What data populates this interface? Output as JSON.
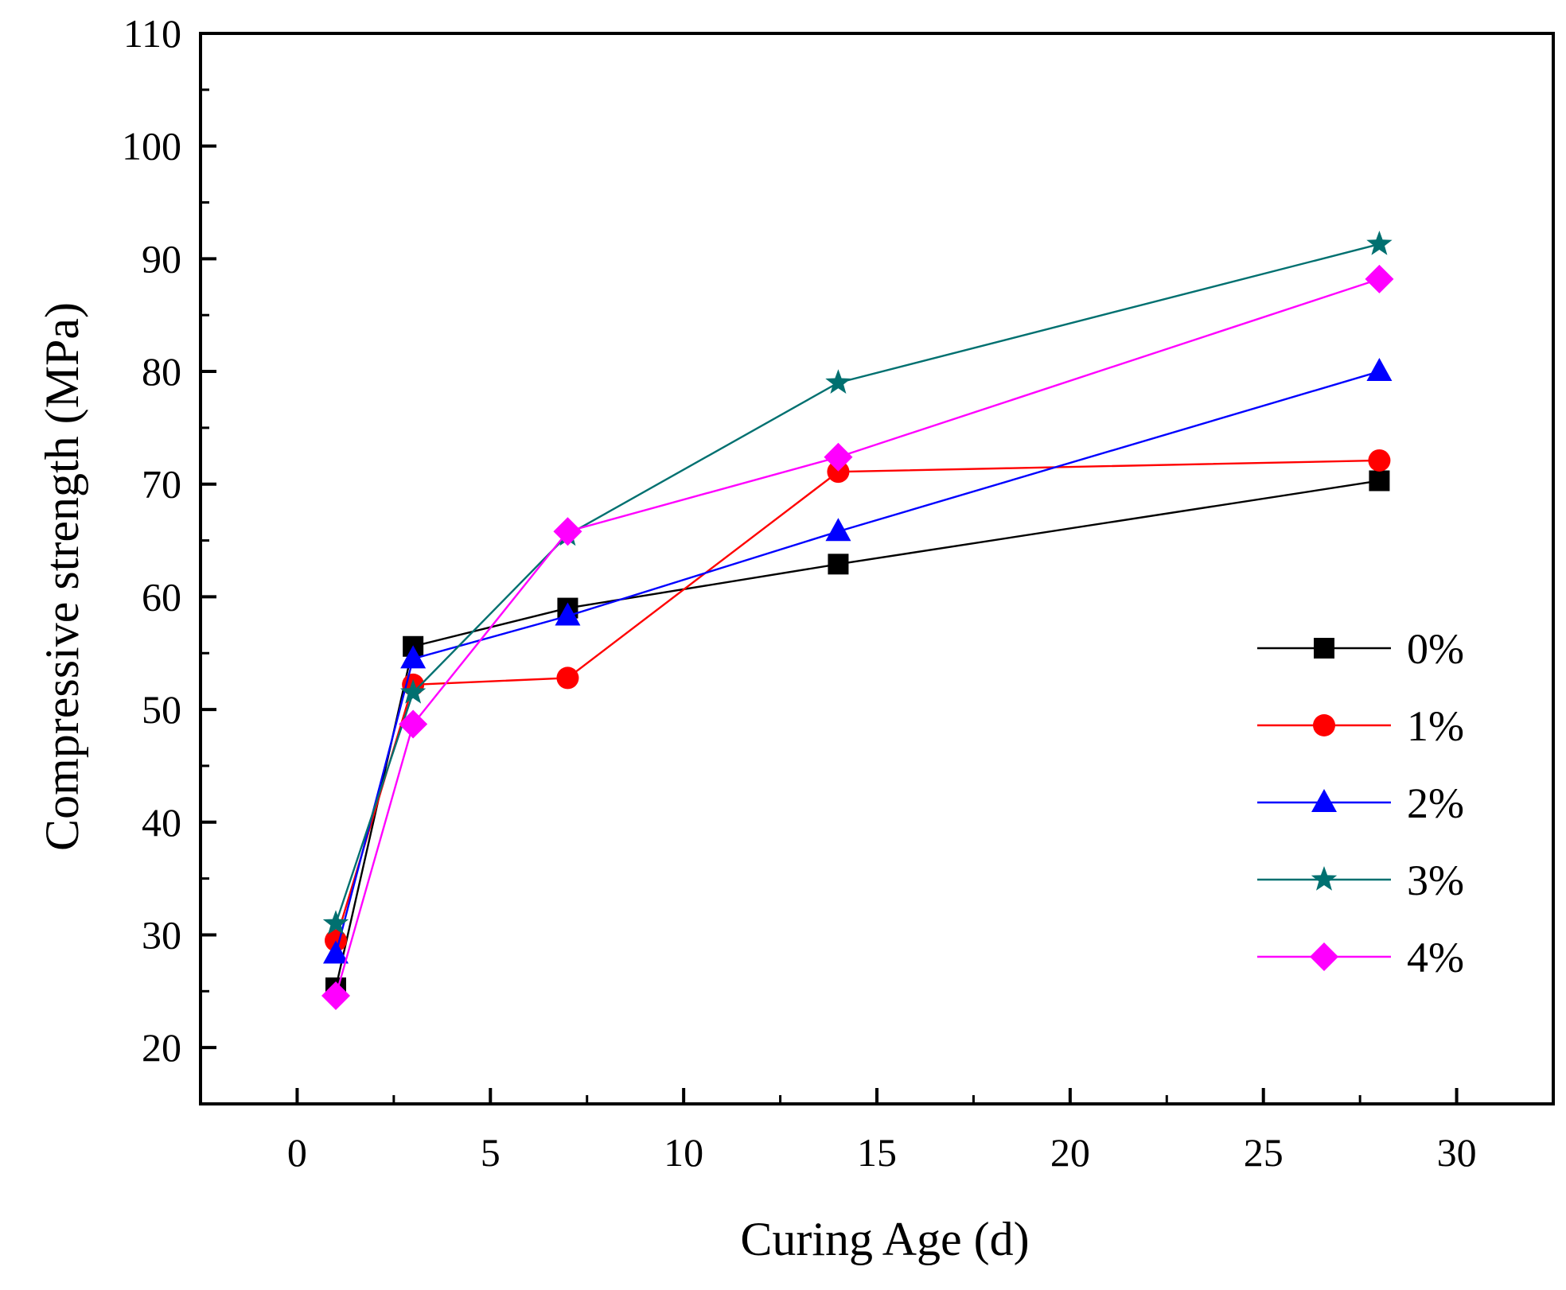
{
  "chart_data": {
    "type": "line",
    "xlabel": "Curing Age (d)",
    "ylabel": "Compressive strength (MPa)",
    "xlim": [
      -2.5,
      32.5
    ],
    "ylim": [
      15,
      110
    ],
    "xticks": [
      0,
      5,
      10,
      15,
      20,
      25,
      30
    ],
    "yticks": [
      20,
      30,
      40,
      50,
      60,
      70,
      80,
      90,
      100,
      110
    ],
    "x": [
      1,
      3,
      7,
      14,
      28
    ],
    "legend_position": "right",
    "grid": false,
    "series": [
      {
        "name": "0%",
        "color": "#000000",
        "marker": "square",
        "values": [
          25.3,
          55.6,
          59.0,
          62.9,
          70.3
        ]
      },
      {
        "name": "1%",
        "color": "#ff0000",
        "marker": "circle",
        "values": [
          29.5,
          52.2,
          52.8,
          71.1,
          72.1
        ]
      },
      {
        "name": "2%",
        "color": "#0000ff",
        "marker": "triangle",
        "values": [
          28.3,
          54.5,
          58.3,
          65.8,
          80.0
        ]
      },
      {
        "name": "3%",
        "color": "#007070",
        "marker": "star",
        "values": [
          31.0,
          51.5,
          65.5,
          79.0,
          91.3
        ]
      },
      {
        "name": "4%",
        "color": "#ff00ff",
        "marker": "diamond",
        "values": [
          24.6,
          48.7,
          65.8,
          72.4,
          88.2
        ]
      }
    ]
  }
}
